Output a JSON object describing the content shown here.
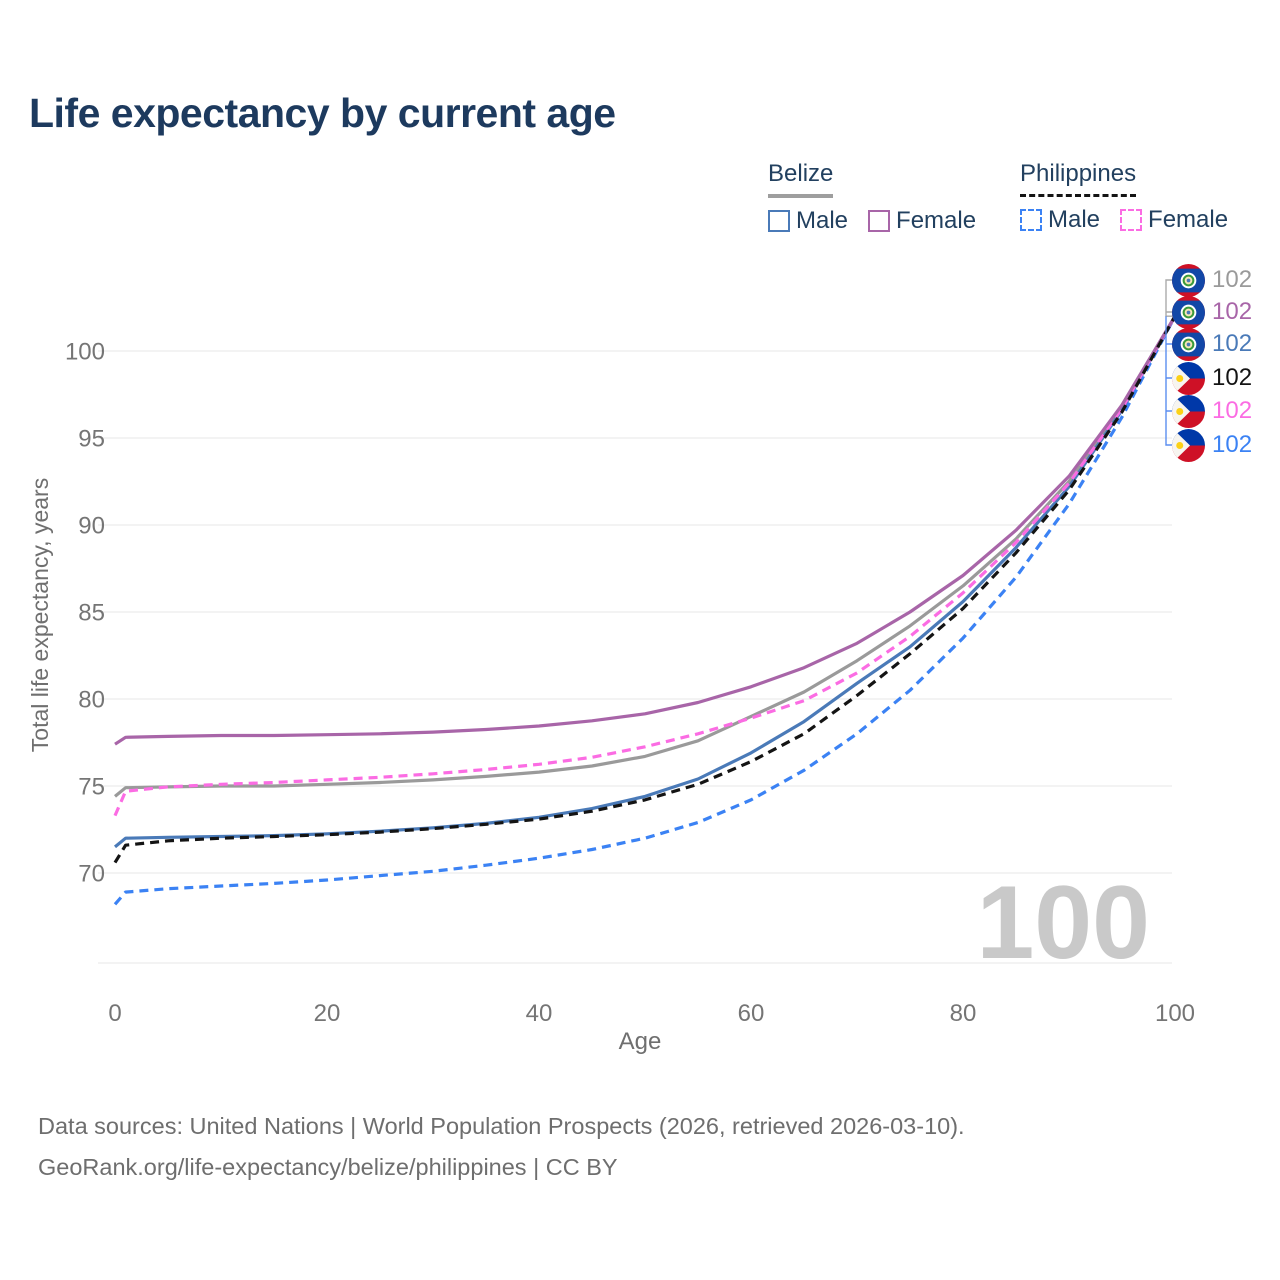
{
  "title": "Life expectancy by current age",
  "watermark": "100",
  "legend": {
    "groups": [
      {
        "label": "Belize",
        "underline_color": "#9e9e9e",
        "underline_style": "solid",
        "items": [
          {
            "label": "Male",
            "color": "#4a7ab8",
            "dashed": false
          },
          {
            "label": "Female",
            "color": "#a865a8",
            "dashed": false
          }
        ]
      },
      {
        "label": "Philippines",
        "underline_color": "#141414",
        "underline_style": "dashed",
        "items": [
          {
            "label": "Male",
            "color": "#3b82f4",
            "dashed": true
          },
          {
            "label": "Female",
            "color": "#fb6ce3",
            "dashed": true
          }
        ]
      }
    ]
  },
  "chart_data": {
    "type": "line",
    "title": "Life expectancy by current age",
    "xlabel": "Age",
    "ylabel": "Total life expectancy, years",
    "xlim": [
      0,
      100
    ],
    "ylim": [
      65,
      103
    ],
    "x_ticks": [
      0,
      20,
      40,
      60,
      80,
      100
    ],
    "y_ticks": [
      70,
      75,
      80,
      85,
      90,
      95,
      100
    ],
    "grid": "horizontal",
    "legend_position": "top-right",
    "x": [
      0,
      1,
      5,
      10,
      15,
      20,
      25,
      30,
      35,
      40,
      45,
      50,
      55,
      60,
      65,
      70,
      75,
      80,
      85,
      90,
      95,
      100
    ],
    "series": [
      {
        "name": "Belize",
        "color": "#9a9a9a",
        "dashed": false,
        "flag": "belize",
        "end_label": "102",
        "values": [
          74.4,
          74.9,
          74.95,
          75.0,
          75.0,
          75.1,
          75.2,
          75.35,
          75.55,
          75.8,
          76.15,
          76.7,
          77.6,
          79.0,
          80.4,
          82.2,
          84.2,
          86.5,
          89.2,
          92.5,
          96.8,
          102
        ]
      },
      {
        "name": "Belize Female",
        "color": "#a865a8",
        "dashed": false,
        "flag": "belize",
        "end_label": "102",
        "values": [
          77.4,
          77.8,
          77.85,
          77.9,
          77.9,
          77.95,
          78.0,
          78.1,
          78.25,
          78.45,
          78.75,
          79.15,
          79.8,
          80.7,
          81.8,
          83.2,
          85.0,
          87.1,
          89.7,
          92.8,
          96.9,
          102
        ]
      },
      {
        "name": "Belize Male",
        "color": "#4a7ab8",
        "dashed": false,
        "flag": "belize",
        "end_label": "102",
        "values": [
          71.5,
          72.0,
          72.05,
          72.1,
          72.15,
          72.25,
          72.4,
          72.6,
          72.85,
          73.2,
          73.7,
          74.4,
          75.4,
          76.9,
          78.7,
          80.9,
          83.0,
          85.6,
          88.7,
          92.2,
          96.6,
          102
        ]
      },
      {
        "name": "Philippines",
        "color": "#141414",
        "dashed": true,
        "flag": "philippines",
        "end_label": "102",
        "values": [
          70.6,
          71.6,
          71.85,
          72.0,
          72.1,
          72.2,
          72.35,
          72.55,
          72.8,
          73.1,
          73.55,
          74.2,
          75.1,
          76.4,
          78.0,
          80.2,
          82.6,
          85.2,
          88.4,
          92.0,
          96.5,
          102
        ]
      },
      {
        "name": "Philippines Female",
        "color": "#fb6ce3",
        "dashed": true,
        "flag": "philippines",
        "end_label": "102",
        "values": [
          73.3,
          74.7,
          74.95,
          75.1,
          75.2,
          75.35,
          75.5,
          75.7,
          75.95,
          76.25,
          76.65,
          77.25,
          78.0,
          78.9,
          79.9,
          81.5,
          83.6,
          86.1,
          89.0,
          92.4,
          96.7,
          102
        ]
      },
      {
        "name": "Philippines Male",
        "color": "#3b82f4",
        "dashed": true,
        "flag": "philippines",
        "end_label": "102",
        "values": [
          68.2,
          68.9,
          69.1,
          69.25,
          69.4,
          69.6,
          69.85,
          70.1,
          70.45,
          70.85,
          71.35,
          72.0,
          72.9,
          74.2,
          75.9,
          78.0,
          80.5,
          83.5,
          87.0,
          91.2,
          96.2,
          102
        ]
      }
    ]
  },
  "footer": {
    "line1": "Data sources: United Nations | World Population Prospects (2026, retrieved 2026-03-10).",
    "line2": "GeoRank.org/life-expectancy/belize/philippines | CC BY"
  }
}
